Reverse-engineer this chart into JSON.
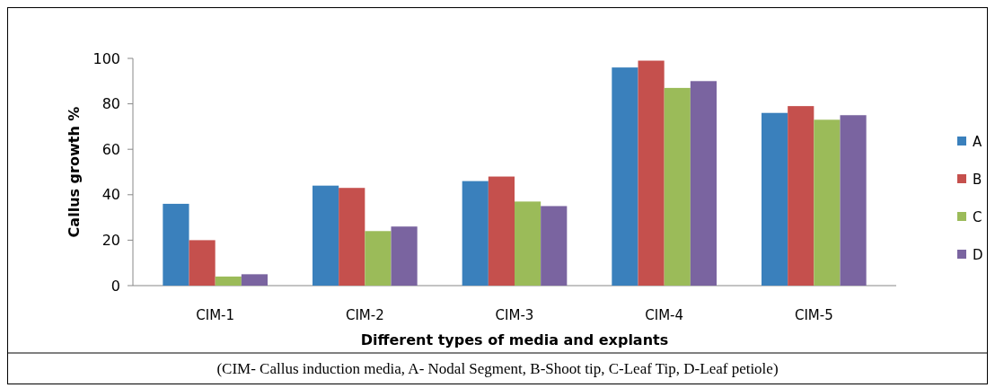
{
  "chart_data": {
    "type": "bar",
    "xlabel": "Different types of media and explants",
    "ylabel": "Callus growth %",
    "categories": [
      "CIM-1",
      "CIM-2",
      "CIM-3",
      "CIM-4",
      "CIM-5"
    ],
    "series": [
      {
        "name": "A",
        "color": "#3a80bc",
        "values": [
          36,
          44,
          46,
          96,
          76
        ]
      },
      {
        "name": "B",
        "color": "#c5504d",
        "values": [
          20,
          43,
          48,
          99,
          79
        ]
      },
      {
        "name": "C",
        "color": "#9bbb59",
        "values": [
          4,
          24,
          37,
          87,
          73
        ]
      },
      {
        "name": "D",
        "color": "#7a64a0",
        "values": [
          5,
          26,
          35,
          90,
          75
        ]
      }
    ],
    "ylim": [
      0,
      100
    ],
    "yticks": [
      0,
      20,
      40,
      60,
      80,
      100
    ],
    "legend": "right",
    "annotations": [
      "(CIM- Callus induction media, A- Nodal Segment, B-Shoot tip, C-Leaf Tip, D-Leaf petiole)"
    ]
  }
}
